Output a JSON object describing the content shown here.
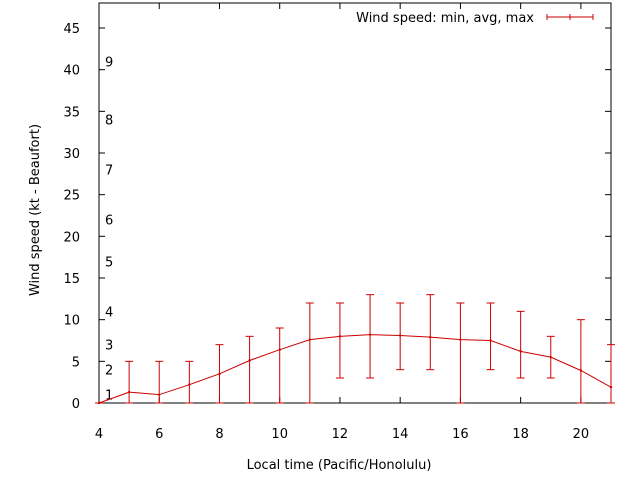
{
  "chart_data": {
    "type": "line",
    "xlabel": "Local time (Pacific/Honolulu)",
    "ylabel": "Wind speed (kt - Beaufort)",
    "xlim": [
      4,
      21
    ],
    "ylim": [
      0,
      48
    ],
    "x_ticks": [
      4,
      6,
      8,
      10,
      12,
      14,
      16,
      18,
      20
    ],
    "y_ticks": [
      0,
      5,
      10,
      15,
      20,
      25,
      30,
      35,
      40,
      45
    ],
    "beaufort_labels": [
      {
        "label": "1",
        "y": 1
      },
      {
        "label": "2",
        "y": 4
      },
      {
        "label": "3",
        "y": 7
      },
      {
        "label": "4",
        "y": 11
      },
      {
        "label": "5",
        "y": 17
      },
      {
        "label": "6",
        "y": 22
      },
      {
        "label": "7",
        "y": 28
      },
      {
        "label": "8",
        "y": 34
      },
      {
        "label": "9",
        "y": 41
      }
    ],
    "grid": false,
    "legend_position": "top-right",
    "series": [
      {
        "name": "Wind speed: min, avg, max",
        "color": "#cc0000",
        "x": [
          4,
          5,
          6,
          7,
          8,
          9,
          10,
          11,
          12,
          13,
          14,
          15,
          16,
          17,
          18,
          19,
          20,
          21
        ],
        "avg": [
          0,
          1.3,
          1.0,
          2.2,
          3.5,
          5.1,
          6.4,
          7.6,
          8.0,
          8.2,
          8.1,
          7.9,
          7.6,
          7.5,
          6.2,
          5.5,
          3.9,
          1.9
        ],
        "min": [
          0,
          0,
          0,
          0,
          0,
          0,
          0,
          0,
          3,
          3,
          4,
          4,
          0,
          4,
          3,
          3,
          0,
          0
        ],
        "max": [
          0,
          5,
          5,
          5,
          7,
          8,
          9,
          12,
          12,
          13,
          12,
          13,
          12,
          12,
          11,
          8,
          10,
          7
        ]
      }
    ]
  }
}
